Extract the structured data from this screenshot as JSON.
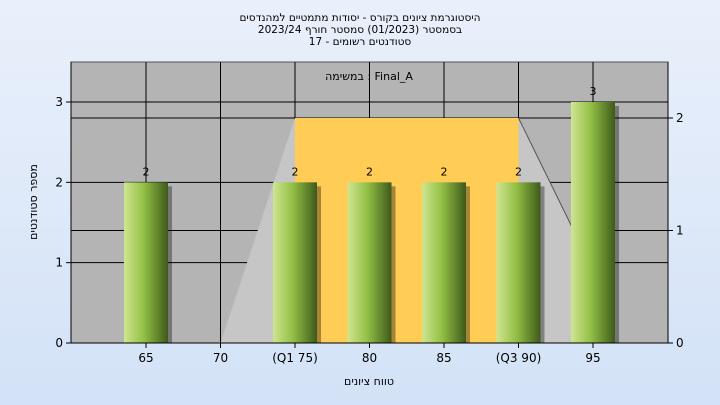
{
  "chart_data": {
    "type": "bar",
    "title_lines": [
      "היסטוגרמת ציונים בקורס - יסודות מתמטיים למהנדסים",
      "בסמסטר  (01/2023)  סמסטר חורף 2023/24",
      "סטודנטים רשומים - 17"
    ],
    "subtitle": "במשימה : Final_A",
    "xlabel": "טווח ציונים",
    "ylabel": "מספר סטודנטים",
    "categories": [
      "65",
      "70",
      "(Q1 75)",
      "80",
      "85",
      "(Q3 90)",
      "95"
    ],
    "values": [
      2,
      0,
      2,
      2,
      2,
      2,
      3
    ],
    "data_labels": [
      "2",
      "",
      "2",
      "2",
      "2",
      "2",
      "3"
    ],
    "ylim": [
      0,
      3.5
    ],
    "yticks": [
      0,
      1,
      2,
      3
    ],
    "y2lim": [
      0,
      2.1
    ],
    "y2ticks": [
      0,
      1,
      2
    ],
    "quartile_box": {
      "q1": 75,
      "q3": 90,
      "height": 2
    },
    "whisker": {
      "min": 70,
      "max": 95
    },
    "grid": true,
    "colors": {
      "bar_light": "#cfe690",
      "bar_mid": "#93bf45",
      "bar_dark": "#3e5a1a",
      "box": "#ffcc55",
      "whisker_fill": "#c6c6c6",
      "plot_bg": "#b4b4b4"
    }
  }
}
